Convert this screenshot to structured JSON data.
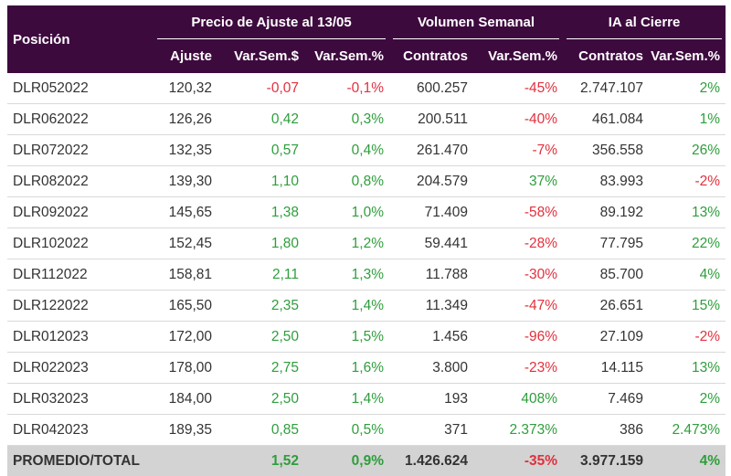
{
  "header": {
    "position_label": "Posición",
    "groups": [
      "Precio de Ajuste al 13/05",
      "Volumen Semanal",
      "IA al Cierre"
    ],
    "columns": [
      "Ajuste",
      "Var.Sem.$",
      "Var.Sem.%",
      "Contratos",
      "Var.Sem.%",
      "Contratos",
      "Var.Sem.%"
    ]
  },
  "rows": [
    {
      "pos": "DLR052022",
      "ajuste": "120,32",
      "var_usd": "-0,07",
      "var_pct": "-0,1%",
      "vol": "600.257",
      "vol_var": "-45%",
      "ia": "2.747.107",
      "ia_var": "2%"
    },
    {
      "pos": "DLR062022",
      "ajuste": "126,26",
      "var_usd": "0,42",
      "var_pct": "0,3%",
      "vol": "200.511",
      "vol_var": "-40%",
      "ia": "461.084",
      "ia_var": "1%"
    },
    {
      "pos": "DLR072022",
      "ajuste": "132,35",
      "var_usd": "0,57",
      "var_pct": "0,4%",
      "vol": "261.470",
      "vol_var": "-7%",
      "ia": "356.558",
      "ia_var": "26%"
    },
    {
      "pos": "DLR082022",
      "ajuste": "139,30",
      "var_usd": "1,10",
      "var_pct": "0,8%",
      "vol": "204.579",
      "vol_var": "37%",
      "ia": "83.993",
      "ia_var": "-2%"
    },
    {
      "pos": "DLR092022",
      "ajuste": "145,65",
      "var_usd": "1,38",
      "var_pct": "1,0%",
      "vol": "71.409",
      "vol_var": "-58%",
      "ia": "89.192",
      "ia_var": "13%"
    },
    {
      "pos": "DLR102022",
      "ajuste": "152,45",
      "var_usd": "1,80",
      "var_pct": "1,2%",
      "vol": "59.441",
      "vol_var": "-28%",
      "ia": "77.795",
      "ia_var": "22%"
    },
    {
      "pos": "DLR112022",
      "ajuste": "158,81",
      "var_usd": "2,11",
      "var_pct": "1,3%",
      "vol": "11.788",
      "vol_var": "-30%",
      "ia": "85.700",
      "ia_var": "4%"
    },
    {
      "pos": "DLR122022",
      "ajuste": "165,50",
      "var_usd": "2,35",
      "var_pct": "1,4%",
      "vol": "11.349",
      "vol_var": "-47%",
      "ia": "26.651",
      "ia_var": "15%"
    },
    {
      "pos": "DLR012023",
      "ajuste": "172,00",
      "var_usd": "2,50",
      "var_pct": "1,5%",
      "vol": "1.456",
      "vol_var": "-96%",
      "ia": "27.109",
      "ia_var": "-2%"
    },
    {
      "pos": "DLR022023",
      "ajuste": "178,00",
      "var_usd": "2,75",
      "var_pct": "1,6%",
      "vol": "3.800",
      "vol_var": "-23%",
      "ia": "14.115",
      "ia_var": "13%"
    },
    {
      "pos": "DLR032023",
      "ajuste": "184,00",
      "var_usd": "2,50",
      "var_pct": "1,4%",
      "vol": "193",
      "vol_var": "408%",
      "ia": "7.469",
      "ia_var": "2%"
    },
    {
      "pos": "DLR042023",
      "ajuste": "189,35",
      "var_usd": "0,85",
      "var_pct": "0,5%",
      "vol": "371",
      "vol_var": "2.373%",
      "ia": "386",
      "ia_var": "2.473%"
    }
  ],
  "total": {
    "pos": "PROMEDIO/TOTAL",
    "ajuste": "",
    "var_usd": "1,52",
    "var_pct": "0,9%",
    "vol": "1.426.624",
    "vol_var": "-35%",
    "ia": "3.977.159",
    "ia_var": "4%"
  },
  "colors": {
    "header_bg": "#3d0a3e",
    "positive": "#2e9e3c",
    "negative": "#e2303d",
    "total_bg": "#d3d3d3"
  }
}
